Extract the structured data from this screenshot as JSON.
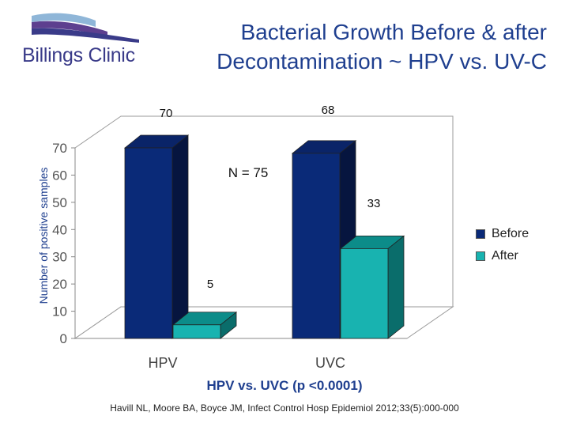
{
  "logo": {
    "text": "Billings Clinic"
  },
  "header": {
    "title_line1": "Bacterial Growth Before & after",
    "title_line2": "Decontamination ~ HPV vs. UV-C"
  },
  "footer": {
    "subtitle": "HPV vs. UVC (p <0.0001)",
    "citation": "Havill NL, Moore BA, Boyce JM, Infect Control Hosp Epidemiol 2012;33(5):000-000"
  },
  "annotations": {
    "n_label": "N = 75"
  },
  "colors": {
    "before": "#0a2a78",
    "after": "#18b3b0",
    "title": "#1f3f8f"
  },
  "chart_data": {
    "type": "bar",
    "title": "Bacterial Growth Before & after Decontamination ~ HPV vs. UV-C",
    "xlabel": "",
    "ylabel": "Number of positive samples",
    "categories": [
      "HPV",
      "UVC"
    ],
    "series": [
      {
        "name": "Before",
        "values": [
          70,
          68
        ]
      },
      {
        "name": "After",
        "values": [
          5,
          33
        ]
      }
    ],
    "data_labels": [
      [
        "70",
        "68"
      ],
      [
        "5",
        "33"
      ]
    ],
    "yticks": [
      0,
      10,
      20,
      30,
      40,
      50,
      60,
      70
    ],
    "ylim": [
      0,
      70
    ],
    "grid": false,
    "legend": "right",
    "three_d": true
  }
}
